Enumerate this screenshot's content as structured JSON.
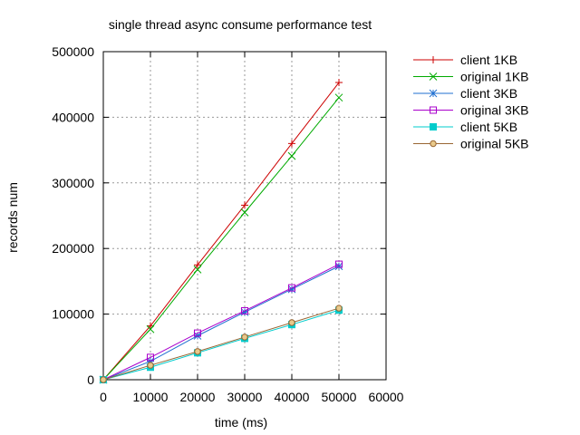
{
  "chart_data": {
    "type": "line",
    "title": "single thread async consume performance test",
    "xlabel": "time (ms)",
    "ylabel": "records num",
    "xlim": [
      0,
      60000
    ],
    "ylim": [
      0,
      500000
    ],
    "xticks": [
      0,
      10000,
      20000,
      30000,
      40000,
      50000,
      60000
    ],
    "yticks": [
      0,
      100000,
      200000,
      300000,
      400000,
      500000
    ],
    "xtick_labels": [
      "0",
      "10000",
      "20000",
      "30000",
      "40000",
      "50000",
      "60000"
    ],
    "ytick_labels": [
      "0",
      "100000",
      "200000",
      "300000",
      "400000",
      "500000"
    ],
    "grid": true,
    "legend_position": "outside-right-top",
    "x": [
      0,
      10000,
      20000,
      30000,
      40000,
      50000
    ],
    "series": [
      {
        "name": "client 1KB",
        "color": "#cc0000",
        "marker": "plus",
        "values": [
          0,
          82000,
          175000,
          266000,
          360000,
          453000
        ]
      },
      {
        "name": "original 1KB",
        "color": "#00aa00",
        "marker": "x",
        "values": [
          0,
          77000,
          168000,
          255000,
          341000,
          430000
        ]
      },
      {
        "name": "client 3KB",
        "color": "#1f6fd0",
        "marker": "star",
        "values": [
          0,
          28000,
          67000,
          103000,
          138000,
          173000
        ]
      },
      {
        "name": "original 3KB",
        "color": "#aa00cc",
        "marker": "square-open",
        "values": [
          0,
          34000,
          71000,
          105000,
          140000,
          176000
        ]
      },
      {
        "name": "client 5KB",
        "color": "#00cccc",
        "marker": "square-filled",
        "values": [
          0,
          19000,
          41000,
          63000,
          84000,
          106000
        ]
      },
      {
        "name": "original 5KB",
        "color": "#996633",
        "marker": "circle",
        "values": [
          0,
          22000,
          43000,
          65000,
          87000,
          109000
        ]
      }
    ]
  }
}
